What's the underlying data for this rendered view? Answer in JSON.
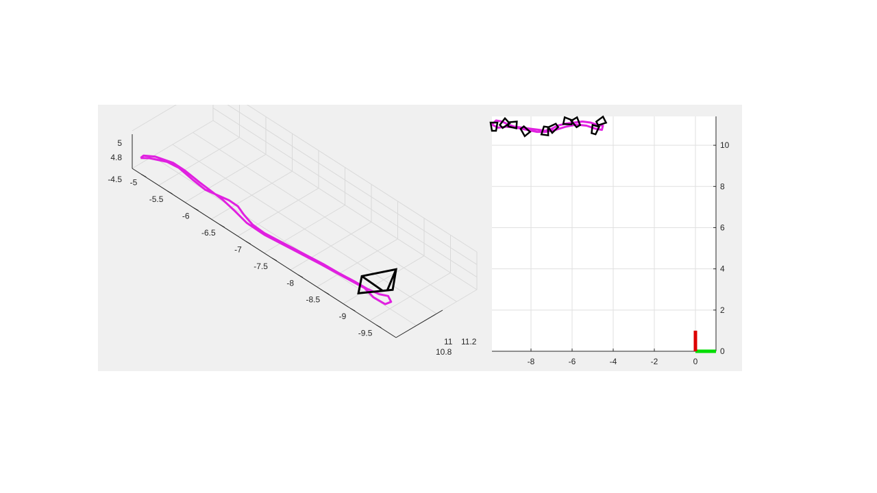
{
  "chart_data": [
    {
      "type": "line3d",
      "view": "oblique-3d",
      "grid": true,
      "x_ticks": [
        "-5",
        "-5.5",
        "-6",
        "-6.5",
        "-7",
        "-7.5",
        "-8",
        "-8.5",
        "-9",
        "-9.5"
      ],
      "y_ticks": [
        "10.8",
        "11",
        "11.2"
      ],
      "z_ticks": [
        "-4.5",
        "4.8",
        "5"
      ],
      "colors": {
        "trajectory": "#e020e0",
        "camera": "#000000",
        "grid": "#d9d9d9",
        "axis": "#262626"
      },
      "trajectory": [
        [
          0.01,
          0.12
        ],
        [
          0.04,
          0.09
        ],
        [
          0.1,
          0.07
        ],
        [
          0.14,
          0.1
        ],
        [
          0.19,
          0.2
        ],
        [
          0.23,
          0.27
        ],
        [
          0.27,
          0.29
        ],
        [
          0.31,
          0.31
        ],
        [
          0.34,
          0.35
        ],
        [
          0.36,
          0.43
        ],
        [
          0.39,
          0.52
        ],
        [
          0.43,
          0.58
        ],
        [
          0.48,
          0.62
        ],
        [
          0.53,
          0.66
        ],
        [
          0.58,
          0.7
        ],
        [
          0.63,
          0.74
        ],
        [
          0.68,
          0.79
        ],
        [
          0.74,
          0.84
        ],
        [
          0.78,
          0.88
        ],
        [
          0.82,
          0.9
        ],
        [
          0.85,
          0.89
        ],
        [
          0.86,
          0.95
        ],
        [
          0.84,
          1.0
        ],
        [
          0.8,
          0.96
        ],
        [
          0.77,
          0.88
        ],
        [
          0.7,
          0.82
        ],
        [
          0.62,
          0.75
        ],
        [
          0.52,
          0.67
        ],
        [
          0.43,
          0.6
        ],
        [
          0.37,
          0.52
        ],
        [
          0.33,
          0.42
        ],
        [
          0.29,
          0.33
        ],
        [
          0.21,
          0.2
        ],
        [
          0.16,
          0.11
        ],
        [
          0.12,
          0.06
        ],
        [
          0.06,
          0.05
        ],
        [
          0.02,
          0.08
        ],
        [
          0.01,
          0.12
        ]
      ],
      "camera_marker": {
        "at": [
          0.77,
          0.86
        ]
      }
    },
    {
      "type": "line",
      "view": "top-down-2d",
      "grid": true,
      "xlim": [
        -9.9,
        1.0
      ],
      "ylim": [
        0,
        11.4
      ],
      "x_ticks": [
        "-8",
        "-6",
        "-4",
        "-2",
        "0"
      ],
      "y_ticks": [
        "0",
        "2",
        "4",
        "6",
        "8",
        "10"
      ],
      "colors": {
        "trajectory": "#e020e0",
        "camera": "#000000",
        "origin_x_axis": "#00dd00",
        "origin_y_axis": "#dd0000"
      },
      "trajectory": [
        [
          -9.9,
          11.0
        ],
        [
          -9.7,
          11.2
        ],
        [
          -9.4,
          11.15
        ],
        [
          -9.1,
          11.0
        ],
        [
          -8.8,
          10.9
        ],
        [
          -8.4,
          10.85
        ],
        [
          -8.0,
          10.8
        ],
        [
          -7.6,
          10.75
        ],
        [
          -7.3,
          10.7
        ],
        [
          -7.0,
          10.8
        ],
        [
          -6.7,
          10.95
        ],
        [
          -6.3,
          11.05
        ],
        [
          -5.9,
          11.1
        ],
        [
          -5.5,
          11.15
        ],
        [
          -5.1,
          11.1
        ],
        [
          -4.8,
          11.0
        ],
        [
          -4.5,
          10.95
        ],
        [
          -4.55,
          10.75
        ],
        [
          -4.85,
          10.8
        ],
        [
          -5.3,
          10.95
        ],
        [
          -5.8,
          11.0
        ],
        [
          -6.3,
          10.9
        ],
        [
          -6.8,
          10.75
        ],
        [
          -7.3,
          10.65
        ],
        [
          -7.7,
          10.65
        ],
        [
          -8.2,
          10.75
        ],
        [
          -8.7,
          10.85
        ],
        [
          -9.2,
          10.9
        ],
        [
          -9.6,
          10.85
        ],
        [
          -9.9,
          11.0
        ]
      ],
      "camera_markers": [
        [
          -9.8,
          10.9
        ],
        [
          -9.3,
          11.05
        ],
        [
          -8.9,
          11.0
        ],
        [
          -8.3,
          10.7
        ],
        [
          -7.3,
          10.7
        ],
        [
          -6.9,
          10.85
        ],
        [
          -6.2,
          11.15
        ],
        [
          -5.8,
          11.1
        ],
        [
          -4.9,
          10.75
        ],
        [
          -4.6,
          11.15
        ]
      ],
      "origin_axes": {
        "x_length": 1.0,
        "y_length": 1.0
      }
    }
  ]
}
